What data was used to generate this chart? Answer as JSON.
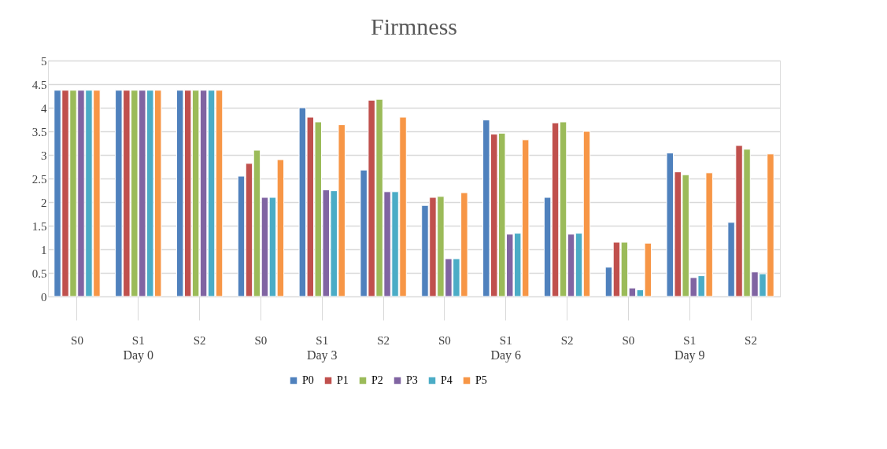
{
  "chart_data": {
    "type": "bar",
    "title": "Firmness",
    "categories": [
      "S0",
      "S1",
      "S2",
      "S0",
      "S1",
      "S2",
      "S0",
      "S1",
      "S2",
      "S0",
      "S1",
      "S2"
    ],
    "annotations": [
      "Day 0",
      "Day 3",
      "Day 6",
      "Day 9"
    ],
    "series": [
      {
        "name": "P0",
        "color": "#4f81bd",
        "values": [
          4.37,
          4.37,
          4.37,
          2.55,
          4.0,
          2.68,
          1.93,
          3.74,
          2.1,
          0.62,
          3.04,
          1.57
        ]
      },
      {
        "name": "P1",
        "color": "#c0504d",
        "values": [
          4.37,
          4.37,
          4.37,
          2.82,
          3.8,
          4.16,
          2.1,
          3.44,
          3.68,
          1.15,
          2.64,
          3.2
        ]
      },
      {
        "name": "P2",
        "color": "#9bbb59",
        "values": [
          4.37,
          4.37,
          4.37,
          3.1,
          3.7,
          4.18,
          2.12,
          3.46,
          3.7,
          1.15,
          2.58,
          3.12
        ]
      },
      {
        "name": "P3",
        "color": "#8064a2",
        "values": [
          4.37,
          4.37,
          4.37,
          2.1,
          2.26,
          2.22,
          0.8,
          1.32,
          1.32,
          0.18,
          0.4,
          0.52
        ]
      },
      {
        "name": "P4",
        "color": "#4bacc6",
        "values": [
          4.37,
          4.37,
          4.37,
          2.1,
          2.24,
          2.22,
          0.8,
          1.34,
          1.34,
          0.14,
          0.44,
          0.48
        ]
      },
      {
        "name": "P5",
        "color": "#f79646",
        "values": [
          4.37,
          4.37,
          4.37,
          2.9,
          3.64,
          3.8,
          2.2,
          3.32,
          3.5,
          1.13,
          2.62,
          3.02
        ]
      }
    ],
    "ylim": [
      0,
      5
    ],
    "yticks": [
      0,
      0.5,
      1,
      1.5,
      2,
      2.5,
      3,
      3.5,
      4,
      4.5,
      5
    ],
    "grid": "y",
    "legend": "bottom"
  }
}
